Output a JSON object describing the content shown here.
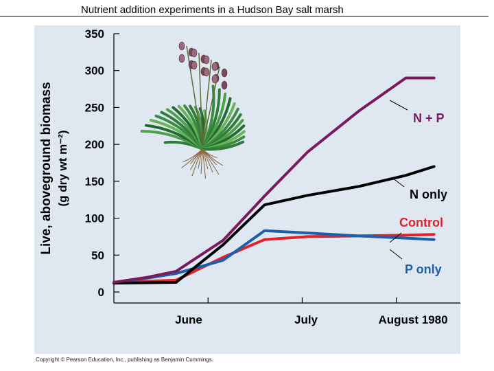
{
  "page": {
    "title": "Nutrient addition experiments in a Hudson Bay salt marsh",
    "copyright": "Copyright © Pearson Education, Inc., publishing as Benjamin Cummings."
  },
  "chart_data": {
    "type": "line",
    "title": "Nutrient addition experiments in a Hudson Bay salt marsh",
    "ylabel_line1": "Live, aboveground biomass",
    "ylabel_line2": "(g dry wt m⁻²)",
    "xlabel": "",
    "ylim": [
      0,
      350
    ],
    "y_ticks": [
      0,
      50,
      100,
      150,
      200,
      250,
      300,
      350
    ],
    "x_tick_labels": [
      "June",
      "July",
      "August 1980"
    ],
    "x_tick_positions": [
      0.5,
      1.0,
      1.5
    ],
    "xlim": [
      0,
      1.84
    ],
    "grid": false,
    "legend": "direct labels at line ends",
    "illustration": "salt-marsh-plant",
    "series": [
      {
        "name": "N + P",
        "color": "#7a1a5e",
        "x": [
          0.0,
          0.18,
          0.33,
          0.58,
          0.8,
          1.03,
          1.3,
          1.55,
          1.7
        ],
        "y": [
          13,
          20,
          28,
          70,
          130,
          190,
          245,
          290,
          290
        ]
      },
      {
        "name": "N only",
        "color": "#000000",
        "x": [
          0.0,
          0.33,
          0.58,
          0.8,
          1.03,
          1.3,
          1.55,
          1.7
        ],
        "y": [
          12,
          13,
          64,
          118,
          131,
          143,
          158,
          170
        ]
      },
      {
        "name": "Control",
        "color": "#e0232a",
        "x": [
          0.0,
          0.33,
          0.58,
          0.8,
          1.03,
          1.3,
          1.55,
          1.7
        ],
        "y": [
          13,
          16,
          47,
          71,
          75,
          76,
          77,
          78
        ]
      },
      {
        "name": "P only",
        "color": "#1c5faa",
        "x": [
          0.0,
          0.18,
          0.33,
          0.58,
          0.8,
          1.03,
          1.3,
          1.55,
          1.7
        ],
        "y": [
          13,
          19,
          25,
          43,
          83,
          80,
          76,
          73,
          71
        ]
      }
    ]
  }
}
